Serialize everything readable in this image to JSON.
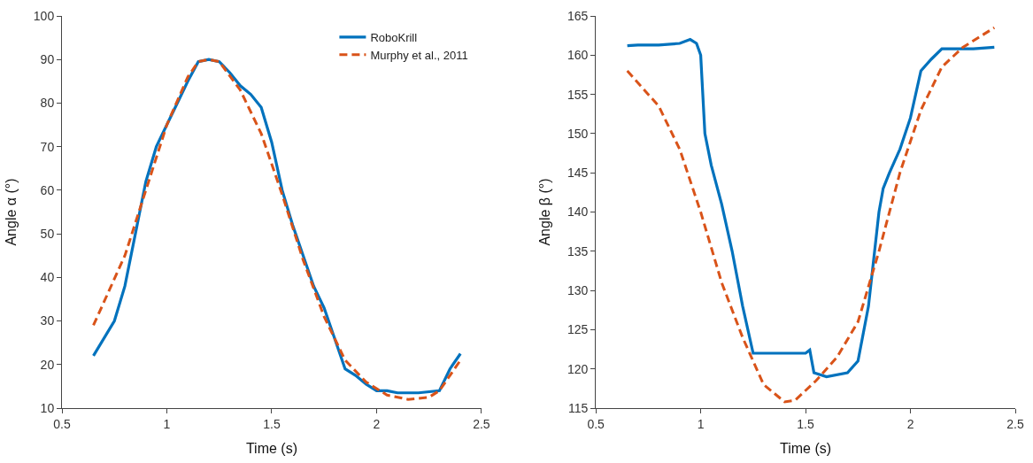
{
  "chart_data": [
    {
      "type": "line",
      "xlabel": "Time (s)",
      "ylabel": "Angle α (°)",
      "xlim": [
        0.5,
        2.5
      ],
      "xticks": [
        0.5,
        1,
        1.5,
        2,
        2.5
      ],
      "ylim": [
        10,
        100
      ],
      "yticks": [
        10,
        20,
        30,
        40,
        50,
        60,
        70,
        80,
        90,
        100
      ],
      "legend": "top right",
      "series": [
        {
          "name": "RoboKrill",
          "color": "#0072bd",
          "line_style": "solid",
          "x": [
            0.65,
            0.75,
            0.8,
            0.85,
            0.9,
            0.95,
            1.0,
            1.05,
            1.1,
            1.15,
            1.2,
            1.25,
            1.3,
            1.35,
            1.4,
            1.45,
            1.5,
            1.55,
            1.6,
            1.65,
            1.7,
            1.75,
            1.8,
            1.85,
            1.9,
            1.95,
            2.0,
            2.05,
            2.1,
            2.2,
            2.3,
            2.35,
            2.4
          ],
          "values": [
            22,
            30,
            38,
            50,
            62,
            70,
            75,
            80,
            85,
            89.5,
            90,
            89.5,
            87,
            84,
            82,
            79,
            71,
            60,
            52,
            45,
            38,
            33,
            26,
            19,
            17.5,
            15.5,
            14,
            14,
            13.5,
            13.5,
            14,
            19,
            22.5
          ]
        },
        {
          "name": "Murphy et al., 2011",
          "color": "#d95319",
          "line_style": "dashed",
          "x": [
            0.65,
            0.8,
            0.9,
            1.0,
            1.1,
            1.15,
            1.2,
            1.25,
            1.35,
            1.45,
            1.55,
            1.65,
            1.75,
            1.85,
            1.95,
            2.05,
            2.15,
            2.25,
            2.3,
            2.4
          ],
          "values": [
            29,
            45,
            60,
            75,
            86,
            89.5,
            90,
            89.5,
            83,
            73,
            59,
            44,
            31,
            21,
            16,
            13,
            12,
            12.5,
            14,
            21
          ]
        }
      ]
    },
    {
      "type": "line",
      "xlabel": "Time (s)",
      "ylabel": "Angle β (°)",
      "xlim": [
        0.5,
        2.5
      ],
      "xticks": [
        0.5,
        1,
        1.5,
        2,
        2.5
      ],
      "ylim": [
        115,
        165
      ],
      "yticks": [
        115,
        120,
        125,
        130,
        135,
        140,
        145,
        150,
        155,
        160,
        165
      ],
      "series": [
        {
          "color": "#0072bd",
          "line_style": "solid",
          "x": [
            0.65,
            0.7,
            0.8,
            0.9,
            0.95,
            0.98,
            1.0,
            1.02,
            1.05,
            1.1,
            1.15,
            1.2,
            1.25,
            1.3,
            1.4,
            1.5,
            1.52,
            1.54,
            1.6,
            1.7,
            1.75,
            1.8,
            1.85,
            1.87,
            1.9,
            1.95,
            2.0,
            2.05,
            2.1,
            2.15,
            2.3,
            2.4
          ],
          "values": [
            161.2,
            161.3,
            161.3,
            161.5,
            162,
            161.5,
            160,
            150,
            146,
            141,
            135,
            128,
            122,
            122,
            122,
            122,
            122.4,
            119.5,
            119,
            119.5,
            121,
            128,
            140,
            143,
            145,
            148,
            152,
            158,
            159.5,
            160.8,
            160.8,
            161
          ]
        },
        {
          "color": "#d95319",
          "line_style": "dashed",
          "x": [
            0.65,
            0.8,
            0.9,
            1.0,
            1.1,
            1.2,
            1.3,
            1.4,
            1.45,
            1.55,
            1.65,
            1.75,
            1.85,
            1.95,
            2.05,
            2.15,
            2.25,
            2.4
          ],
          "values": [
            158,
            153.5,
            148,
            140,
            131,
            124,
            118,
            115.8,
            116,
            118.5,
            121.5,
            126,
            135,
            145,
            153,
            158.5,
            161,
            163.5
          ]
        }
      ]
    }
  ]
}
